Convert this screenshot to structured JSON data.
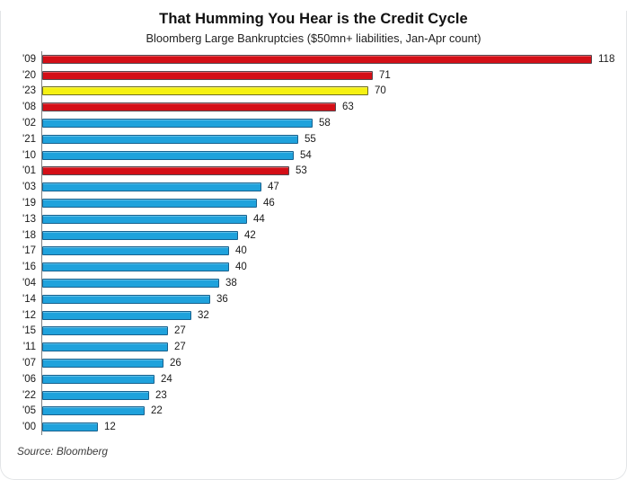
{
  "chart_data": {
    "type": "bar",
    "orientation": "horizontal",
    "title": "That Humming You Hear is the Credit Cycle",
    "subtitle": "Bloomberg Large Bankruptcies ($50mn+ liabilities, Jan-Apr count)",
    "categories": [
      "'09",
      "'20",
      "'23",
      "'08",
      "'02",
      "'21",
      "'10",
      "'01",
      "'03",
      "'19",
      "'13",
      "'18",
      "'17",
      "'16",
      "'04",
      "'14",
      "'12",
      "'15",
      "'11",
      "'07",
      "'06",
      "'22",
      "'05",
      "'00"
    ],
    "values": [
      118,
      71,
      70,
      63,
      58,
      55,
      54,
      53,
      47,
      46,
      44,
      42,
      40,
      40,
      38,
      36,
      32,
      27,
      27,
      26,
      24,
      23,
      22,
      12
    ],
    "bar_colors": [
      "red",
      "red",
      "yellow",
      "red",
      "blue",
      "blue",
      "blue",
      "red",
      "blue",
      "blue",
      "blue",
      "blue",
      "blue",
      "blue",
      "blue",
      "blue",
      "blue",
      "blue",
      "blue",
      "blue",
      "blue",
      "blue",
      "blue",
      "blue"
    ],
    "palette": {
      "red": {
        "fill": "#d40f17",
        "border": "#55484f"
      },
      "yellow": {
        "fill": "#f5f112",
        "border": "#6e6e24"
      },
      "blue": {
        "fill": "#1fa2dc",
        "border": "#17618e"
      }
    },
    "axis_color": "#808080",
    "xlim": [
      0,
      118
    ],
    "value_labels_shown": true,
    "legend": "none",
    "grid": "off"
  },
  "source_note": "Source: Bloomberg"
}
